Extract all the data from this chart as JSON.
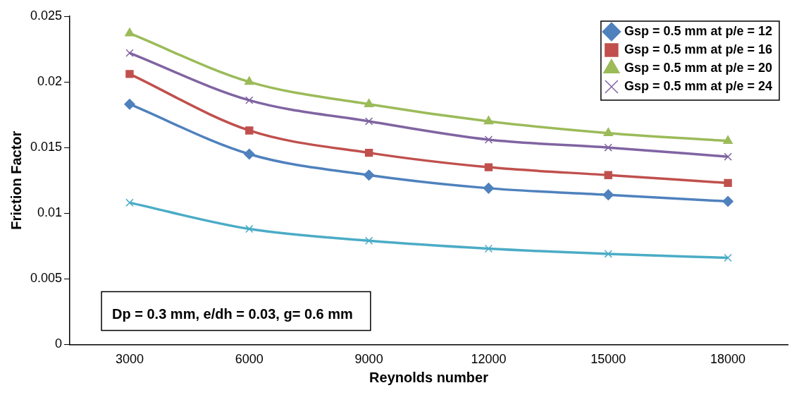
{
  "chart_data": {
    "type": "line",
    "xlabel": "Reynolds number",
    "ylabel": "Friction Factor",
    "categories": [
      "3000",
      "6000",
      "9000",
      "12000",
      "15000",
      "18000"
    ],
    "series": [
      {
        "name": "Gsp = 0.5 mm at p/e = 12",
        "color": "#4f81bd",
        "marker": "diamond",
        "values": [
          0.0183,
          0.0145,
          0.0129,
          0.0119,
          0.0114,
          0.0109
        ]
      },
      {
        "name": "Gsp = 0.5 mm at p/e = 16",
        "color": "#c0504d",
        "marker": "square",
        "values": [
          0.0206,
          0.0163,
          0.0146,
          0.0135,
          0.0129,
          0.0123
        ]
      },
      {
        "name": "Gsp = 0.5 mm at p/e = 20",
        "color": "#9bbb59",
        "marker": "triangle",
        "values": [
          0.0237,
          0.02,
          0.0183,
          0.017,
          0.0161,
          0.0155
        ]
      },
      {
        "name": "Gsp = 0.5 mm at p/e = 24",
        "color": "#8064a2",
        "marker": "cross",
        "values": [
          0.0222,
          0.0186,
          0.017,
          0.0156,
          0.015,
          0.0143
        ]
      },
      {
        "color": "#4bacc6",
        "marker": "cross",
        "values": [
          0.0108,
          0.0088,
          0.0079,
          0.0073,
          0.0069,
          0.0066
        ]
      }
    ],
    "ylim": [
      0,
      0.025
    ],
    "yticks": [
      0,
      0.005,
      0.01,
      0.015,
      0.02,
      0.025
    ],
    "grid": false,
    "legend": "top right",
    "annotations": [
      "Dp = 0.3 mm, e/dh = 0.03, g= 0.6 mm"
    ]
  }
}
